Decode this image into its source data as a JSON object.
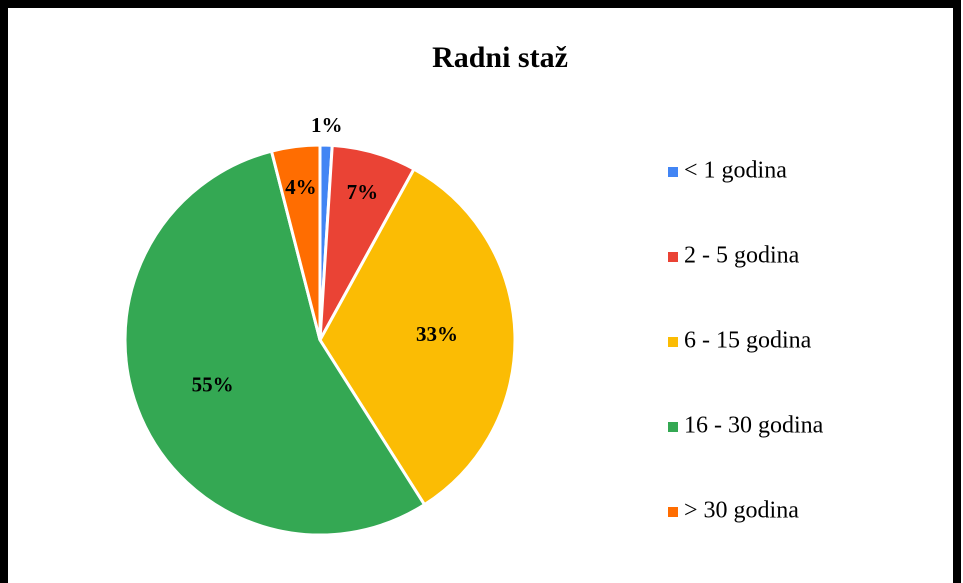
{
  "chart_data": {
    "type": "pie",
    "title": "Radni staž",
    "categories": [
      "< 1 godina",
      "2 - 5 godina",
      "6 - 15 godina",
      "16 - 30 godina",
      "> 30 godina"
    ],
    "values": [
      1,
      7,
      33,
      55,
      4
    ],
    "value_labels": [
      "1%",
      "7%",
      "33%",
      "55%",
      "4%"
    ],
    "colors": [
      "#4285f4",
      "#ea4335",
      "#fbbc04",
      "#34a853",
      "#ff6d01"
    ],
    "legend": "right"
  }
}
